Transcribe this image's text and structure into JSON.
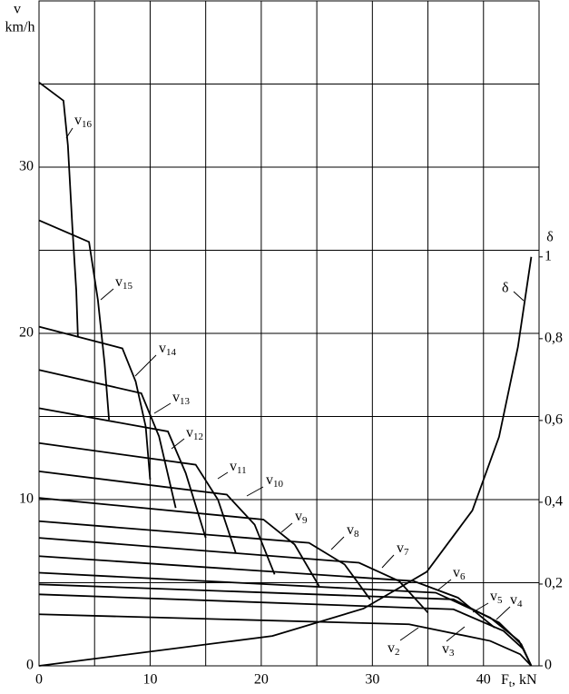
{
  "chart_data": {
    "type": "line",
    "y_label_top": "v",
    "y_label_unit": "km/h",
    "y2_label": "δ",
    "x_label": {
      "main": "F",
      "sub": "t",
      "rest": ", kN"
    },
    "xlim": [
      0,
      45
    ],
    "ylim": [
      0,
      40
    ],
    "y2lim": [
      0,
      1.626
    ],
    "xticks": [
      0,
      10,
      20,
      30,
      40
    ],
    "yticks": [
      0,
      10,
      20,
      30
    ],
    "xgrid": [
      0,
      5,
      10,
      15,
      20,
      25,
      30,
      35,
      40,
      45
    ],
    "ygrid": [
      0,
      5,
      10,
      15,
      20,
      25,
      30,
      35,
      40
    ],
    "y2ticks": [
      0,
      {
        "value": 0.2,
        "label": "0,2"
      },
      {
        "value": 0.4,
        "label": "0,4"
      },
      {
        "value": 0.6,
        "label": "0,6"
      },
      {
        "value": 0.8,
        "label": "0,8"
      },
      1
    ],
    "grid": true,
    "series": [
      {
        "name": "v16",
        "color": "#000000",
        "x": [
          0,
          2.2,
          2.6,
          3.0,
          3.35,
          3.5
        ],
        "values": [
          35.1,
          34.0,
          31.3,
          26.4,
          22.6,
          19.8
        ]
      },
      {
        "name": "v15",
        "color": "#000000",
        "x": [
          0,
          4.5,
          5.3,
          5.9,
          6.3
        ],
        "values": [
          26.8,
          25.5,
          22.0,
          18.2,
          14.8
        ]
      },
      {
        "name": "v14",
        "color": "#000000",
        "x": [
          0,
          7.5,
          8.7,
          9.6,
          10.0
        ],
        "values": [
          20.4,
          19.1,
          17.1,
          14.4,
          11.2
        ]
      },
      {
        "name": "v13",
        "color": "#000000",
        "x": [
          0,
          9.2,
          10.8,
          12.3
        ],
        "values": [
          17.8,
          16.4,
          13.8,
          9.5
        ]
      },
      {
        "name": "v12",
        "color": "#000000",
        "x": [
          0,
          11.6,
          13.2,
          15.0
        ],
        "values": [
          15.5,
          14.1,
          11.6,
          7.7
        ]
      },
      {
        "name": "v11",
        "color": "#000000",
        "x": [
          0,
          14.1,
          16.1,
          17.7
        ],
        "values": [
          13.4,
          12.1,
          10.0,
          6.8
        ]
      },
      {
        "name": "v10",
        "color": "#000000",
        "x": [
          0,
          16.9,
          19.4,
          21.2
        ],
        "values": [
          11.7,
          10.3,
          8.5,
          5.5
        ]
      },
      {
        "name": "v9",
        "color": "#000000",
        "x": [
          0,
          20.2,
          23.0,
          25.2
        ],
        "values": [
          10.1,
          8.8,
          7.3,
          4.8
        ]
      },
      {
        "name": "v8",
        "color": "#000000",
        "x": [
          0,
          24.3,
          27.5,
          29.8
        ],
        "values": [
          8.7,
          7.4,
          6.1,
          4.0
        ]
      },
      {
        "name": "v7",
        "color": "#000000",
        "x": [
          0,
          28.8,
          32.4,
          35.0
        ],
        "values": [
          7.7,
          6.2,
          5.1,
          3.2
        ]
      },
      {
        "name": "v6",
        "color": "#000000",
        "x": [
          0,
          33.7,
          37.7,
          41.0
        ],
        "values": [
          6.6,
          5.1,
          4.1,
          2.3
        ]
      },
      {
        "name": "v5",
        "color": "#000000",
        "x": [
          0,
          35.7,
          40.6,
          43.2,
          44.3
        ],
        "values": [
          5.6,
          4.4,
          2.9,
          1.5,
          0
        ]
      },
      {
        "name": "v4",
        "color": "#000000",
        "x": [
          0,
          37.3,
          41.4,
          43.4,
          44.3
        ],
        "values": [
          4.9,
          4.0,
          2.6,
          1.3,
          0
        ]
      },
      {
        "name": "v3",
        "color": "#000000",
        "x": [
          0,
          37.3,
          41.8,
          43.6,
          44.3
        ],
        "values": [
          4.3,
          3.4,
          2.1,
          1.0,
          0
        ]
      },
      {
        "name": "v2",
        "color": "#000000",
        "x": [
          0,
          33.3,
          40.6,
          43.3,
          44.3
        ],
        "values": [
          3.1,
          2.5,
          1.5,
          0.7,
          0
        ]
      },
      {
        "name": "δ",
        "color": "#000000",
        "axis": "y2",
        "x": [
          0,
          21.0,
          29.2,
          34.9,
          39.0,
          41.4,
          43.1,
          44.3
        ],
        "values": [
          0,
          0.073,
          0.14,
          0.23,
          0.38,
          0.56,
          0.78,
          1.0
        ]
      }
    ]
  }
}
